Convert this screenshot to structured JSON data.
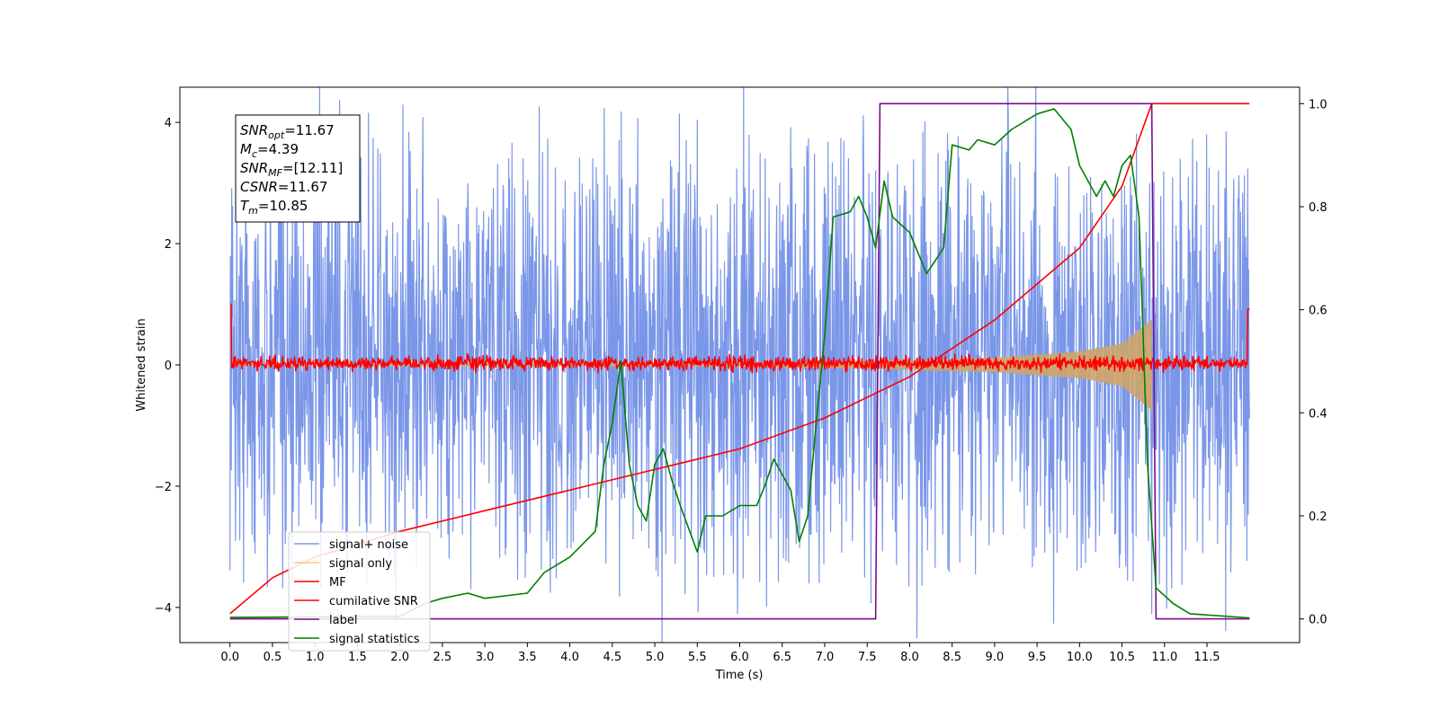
{
  "chart_data": {
    "type": "line",
    "title": "",
    "xlabel": "Time (s)",
    "ylabel": "Whitened strain",
    "y2label": "",
    "xlim": [
      -0.59,
      12.59
    ],
    "ylim": [
      -4.58,
      4.58
    ],
    "y2lim": [
      -0.046,
      1.032
    ],
    "xticks": [
      0.0,
      0.5,
      1.0,
      1.5,
      2.0,
      2.5,
      3.0,
      3.5,
      4.0,
      4.5,
      5.0,
      5.5,
      6.0,
      6.5,
      7.0,
      7.5,
      8.0,
      8.5,
      9.0,
      9.5,
      10.0,
      10.5,
      11.0,
      11.5
    ],
    "xtick_labels": [
      "0.0",
      "0.5",
      "1.0",
      "1.5",
      "2.0",
      "2.5",
      "3.0",
      "3.5",
      "4.0",
      "4.5",
      "5.0",
      "5.5",
      "6.0",
      "6.5",
      "7.0",
      "7.5",
      "8.0",
      "8.5",
      "9.0",
      "9.5",
      "10.0",
      "10.5",
      "11.0",
      "11.5"
    ],
    "yticks": [
      -4,
      -2,
      0,
      2,
      4
    ],
    "ytick_labels": [
      "−4",
      "−2",
      "0",
      "2",
      "4"
    ],
    "y2ticks": [
      0.0,
      0.2,
      0.4,
      0.6,
      0.8,
      1.0
    ],
    "y2tick_labels": [
      "0.0",
      "0.2",
      "0.4",
      "0.6",
      "0.8",
      "1.0"
    ],
    "grid": false,
    "legend_position": "lower-left",
    "info_box": {
      "lines": [
        {
          "base": "SNR",
          "sub": "opt",
          "value": "=11.67"
        },
        {
          "base": "M",
          "sub": "c",
          "value": "=4.39"
        },
        {
          "base": "SNR",
          "sub": "MF",
          "value": "=[12.11]"
        },
        {
          "base": "CSNR",
          "sub": "",
          "value": "=11.67"
        },
        {
          "base": "T",
          "sub": "m",
          "value": "=10.85"
        }
      ]
    },
    "series": [
      {
        "name": "signal+ noise",
        "color": "#7a96e8",
        "axis": "left",
        "kind": "noise-band",
        "x_range": [
          0.0,
          12.0
        ],
        "typical_range": [
          -1.8,
          2.0
        ],
        "peak_values": [
          [
            0.12,
            2.1
          ],
          [
            0.6,
            2.7
          ],
          [
            1.2,
            3.1
          ],
          [
            1.63,
            4.15
          ],
          [
            2.2,
            2.9
          ],
          [
            3.45,
            3.4
          ],
          [
            5.37,
            3.7
          ],
          [
            6.3,
            3.4
          ],
          [
            7.6,
            3.2
          ],
          [
            9.48,
            3.4
          ],
          [
            10.6,
            3.1
          ],
          [
            11.2,
            2.7
          ],
          [
            3.49,
            -3.1
          ],
          [
            7.47,
            -3.5
          ],
          [
            10.85,
            -4.1
          ],
          [
            11.45,
            -3.1
          ]
        ]
      },
      {
        "name": "signal only",
        "color": "#ffc86b",
        "axis": "left",
        "kind": "chirp-envelope",
        "x_range": [
          0.0,
          10.85
        ],
        "amplitude": [
          [
            0.0,
            0.01
          ],
          [
            6.0,
            0.02
          ],
          [
            8.0,
            0.08
          ],
          [
            9.0,
            0.12
          ],
          [
            10.0,
            0.22
          ],
          [
            10.5,
            0.35
          ],
          [
            10.85,
            0.75
          ]
        ]
      },
      {
        "name": "MF",
        "color": "#ff0000",
        "axis": "left",
        "kind": "noise-band",
        "x_range": [
          0.0,
          12.0
        ],
        "typical_range": [
          -0.1,
          0.15
        ],
        "edge_values": [
          [
            0.0,
            1.0
          ],
          [
            12.0,
            0.92
          ]
        ]
      },
      {
        "name": "cumilative SNR",
        "color": "#ff0000",
        "axis": "right",
        "kind": "line",
        "points": [
          [
            0.0,
            0.01
          ],
          [
            0.5,
            0.08
          ],
          [
            1.0,
            0.12
          ],
          [
            2.0,
            0.17
          ],
          [
            3.0,
            0.21
          ],
          [
            4.0,
            0.25
          ],
          [
            5.0,
            0.29
          ],
          [
            6.0,
            0.33
          ],
          [
            7.0,
            0.39
          ],
          [
            8.0,
            0.47
          ],
          [
            9.0,
            0.58
          ],
          [
            10.0,
            0.72
          ],
          [
            10.5,
            0.84
          ],
          [
            10.85,
            1.0
          ],
          [
            12.0,
            1.0
          ]
        ]
      },
      {
        "name": "label",
        "color": "#7b0c8e",
        "axis": "right",
        "kind": "step",
        "points": [
          [
            0.0,
            0.0
          ],
          [
            7.6,
            0.0
          ],
          [
            7.65,
            1.0
          ],
          [
            10.85,
            1.0
          ],
          [
            10.9,
            0.0
          ],
          [
            12.0,
            0.0
          ]
        ]
      },
      {
        "name": "signal statistics",
        "color": "#008000",
        "axis": "right",
        "kind": "line",
        "points": [
          [
            0.0,
            0.003
          ],
          [
            2.0,
            0.005
          ],
          [
            2.3,
            0.03
          ],
          [
            2.5,
            0.04
          ],
          [
            2.8,
            0.05
          ],
          [
            3.0,
            0.04
          ],
          [
            3.5,
            0.05
          ],
          [
            3.7,
            0.09
          ],
          [
            4.0,
            0.12
          ],
          [
            4.3,
            0.17
          ],
          [
            4.4,
            0.3
          ],
          [
            4.5,
            0.38
          ],
          [
            4.6,
            0.5
          ],
          [
            4.7,
            0.3
          ],
          [
            4.8,
            0.22
          ],
          [
            4.9,
            0.19
          ],
          [
            5.0,
            0.3
          ],
          [
            5.1,
            0.33
          ],
          [
            5.2,
            0.27
          ],
          [
            5.3,
            0.22
          ],
          [
            5.5,
            0.13
          ],
          [
            5.6,
            0.2
          ],
          [
            5.8,
            0.2
          ],
          [
            6.0,
            0.22
          ],
          [
            6.2,
            0.22
          ],
          [
            6.3,
            0.26
          ],
          [
            6.4,
            0.31
          ],
          [
            6.6,
            0.25
          ],
          [
            6.7,
            0.15
          ],
          [
            6.8,
            0.2
          ],
          [
            6.9,
            0.38
          ],
          [
            7.0,
            0.55
          ],
          [
            7.1,
            0.78
          ],
          [
            7.3,
            0.79
          ],
          [
            7.4,
            0.82
          ],
          [
            7.5,
            0.78
          ],
          [
            7.6,
            0.72
          ],
          [
            7.7,
            0.85
          ],
          [
            7.8,
            0.78
          ],
          [
            8.0,
            0.75
          ],
          [
            8.2,
            0.67
          ],
          [
            8.4,
            0.72
          ],
          [
            8.5,
            0.92
          ],
          [
            8.7,
            0.91
          ],
          [
            8.8,
            0.93
          ],
          [
            9.0,
            0.92
          ],
          [
            9.2,
            0.95
          ],
          [
            9.5,
            0.98
          ],
          [
            9.7,
            0.99
          ],
          [
            9.9,
            0.95
          ],
          [
            10.0,
            0.88
          ],
          [
            10.2,
            0.82
          ],
          [
            10.3,
            0.85
          ],
          [
            10.4,
            0.82
          ],
          [
            10.5,
            0.88
          ],
          [
            10.6,
            0.9
          ],
          [
            10.7,
            0.78
          ],
          [
            10.8,
            0.3
          ],
          [
            10.9,
            0.06
          ],
          [
            11.1,
            0.03
          ],
          [
            11.3,
            0.01
          ],
          [
            12.0,
            0.002
          ]
        ]
      }
    ]
  }
}
